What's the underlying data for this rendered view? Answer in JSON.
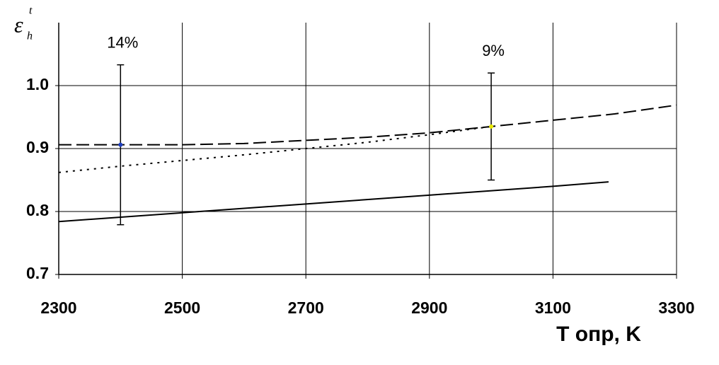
{
  "chart_data": {
    "type": "line",
    "xlabel": "T опр, K",
    "ylabel": "ε",
    "ylabel_sub": "h",
    "ylabel_sup": "t",
    "xlim": [
      2300,
      3300
    ],
    "xticks": [
      2300,
      2500,
      2700,
      2900,
      3100,
      3300
    ],
    "ylim": [
      0.7,
      1.1
    ],
    "yticks": [
      {
        "value": 0.7,
        "label": "0.7"
      },
      {
        "value": 0.8,
        "label": "0.8"
      },
      {
        "value": 0.9,
        "label": "0.9"
      },
      {
        "value": 1.0,
        "label": "1.0"
      }
    ],
    "grid": true,
    "series": [
      {
        "style": "solid",
        "color": "#000000",
        "x": [
          2300,
          2500,
          2700,
          2900,
          3100,
          3190
        ],
        "values": [
          0.784,
          0.798,
          0.812,
          0.826,
          0.84,
          0.847
        ]
      },
      {
        "style": "dashed",
        "color": "#000000",
        "x": [
          2300,
          2500,
          2600,
          2700,
          2800,
          2900,
          3000,
          3100,
          3200,
          3300
        ],
        "values": [
          0.906,
          0.906,
          0.908,
          0.913,
          0.918,
          0.925,
          0.935,
          0.945,
          0.955,
          0.969
        ]
      },
      {
        "style": "dotted",
        "color": "#000000",
        "x": [
          2300,
          2400,
          2500,
          2600,
          2700,
          2800,
          2900,
          3000
        ],
        "values": [
          0.862,
          0.872,
          0.881,
          0.89,
          0.9,
          0.91,
          0.922,
          0.935
        ]
      }
    ],
    "errorbars": [
      {
        "x": 2400,
        "y": 0.906,
        "error": 0.127,
        "label": "14%",
        "color": "#1f3fbf"
      },
      {
        "x": 3000,
        "y": 0.935,
        "error": 0.085,
        "label": "9%",
        "color": "#e8e800"
      }
    ]
  }
}
